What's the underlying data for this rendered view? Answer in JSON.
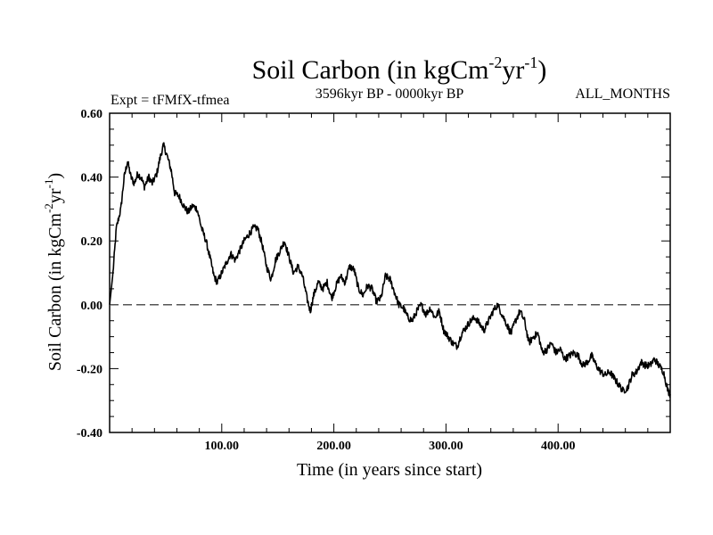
{
  "chart_data": {
    "type": "line",
    "title": "Soil Carbon (in kgCm",
    "title_sup1": "-2",
    "title_mid": "yr",
    "title_sup2": "-1",
    "title_end": ")",
    "subtitle_left": "Expt = tFMfX-tfmea",
    "subtitle_center": "3596kyr BP - 0000kyr BP",
    "subtitle_right": "ALL_MONTHS",
    "xlabel": "Time (in years since start)",
    "ylabel_parts": [
      "Soil Carbon (in kgCm",
      "-2",
      "yr",
      "-1",
      ")"
    ],
    "xlim": [
      0,
      500
    ],
    "ylim": [
      -0.4,
      0.6
    ],
    "xticks": [
      100,
      200,
      300,
      400
    ],
    "xtick_labels": [
      "100.00",
      "200.00",
      "300.00",
      "400.00"
    ],
    "yticks": [
      -0.4,
      -0.2,
      0.0,
      0.2,
      0.4,
      0.6
    ],
    "ytick_labels": [
      "-0.40",
      "-0.20",
      "0.00",
      "0.20",
      "0.40",
      "0.60"
    ],
    "reference_line": {
      "y": 0.0,
      "style": "dashed"
    },
    "line_color": "#000000",
    "series": [
      {
        "name": "Soil Carbon",
        "x": [
          0,
          3,
          6,
          10,
          13,
          16,
          19,
          22,
          25,
          28,
          31,
          35,
          38,
          42,
          45,
          48,
          51,
          55,
          58,
          62,
          66,
          70,
          74,
          78,
          82,
          86,
          90,
          93,
          96,
          100,
          104,
          108,
          112,
          116,
          120,
          124,
          128,
          132,
          136,
          140,
          144,
          148,
          152,
          156,
          160,
          164,
          168,
          172,
          176,
          179,
          182,
          186,
          190,
          194,
          198,
          202,
          206,
          210,
          214,
          218,
          222,
          226,
          230,
          234,
          238,
          242,
          246,
          250,
          254,
          258,
          262,
          266,
          270,
          274,
          278,
          282,
          286,
          290,
          294,
          298,
          302,
          306,
          310,
          314,
          318,
          322,
          326,
          330,
          334,
          338,
          342,
          346,
          350,
          354,
          358,
          362,
          366,
          370,
          374,
          378,
          382,
          386,
          390,
          394,
          398,
          402,
          406,
          410,
          414,
          418,
          422,
          426,
          430,
          434,
          438,
          442,
          446,
          450,
          454,
          458,
          462,
          466,
          470,
          474,
          478,
          482,
          486,
          490,
          494,
          498,
          500
        ],
        "y": [
          0.0,
          0.1,
          0.24,
          0.3,
          0.4,
          0.45,
          0.4,
          0.38,
          0.41,
          0.4,
          0.37,
          0.4,
          0.38,
          0.41,
          0.46,
          0.5,
          0.47,
          0.42,
          0.35,
          0.34,
          0.31,
          0.29,
          0.31,
          0.3,
          0.24,
          0.2,
          0.14,
          0.09,
          0.07,
          0.1,
          0.13,
          0.16,
          0.14,
          0.17,
          0.2,
          0.22,
          0.24,
          0.24,
          0.19,
          0.12,
          0.08,
          0.14,
          0.17,
          0.2,
          0.15,
          0.1,
          0.12,
          0.09,
          0.02,
          -0.02,
          0.03,
          0.07,
          0.05,
          0.07,
          0.02,
          0.06,
          0.09,
          0.07,
          0.12,
          0.11,
          0.05,
          0.03,
          0.06,
          0.05,
          0.01,
          0.02,
          0.09,
          0.08,
          0.04,
          0.0,
          -0.01,
          -0.04,
          -0.05,
          -0.02,
          0.0,
          -0.03,
          -0.01,
          -0.04,
          -0.02,
          -0.08,
          -0.1,
          -0.12,
          -0.13,
          -0.09,
          -0.07,
          -0.05,
          -0.04,
          -0.06,
          -0.08,
          -0.05,
          -0.02,
          0.0,
          -0.03,
          -0.06,
          -0.09,
          -0.05,
          -0.02,
          -0.05,
          -0.12,
          -0.1,
          -0.09,
          -0.15,
          -0.14,
          -0.12,
          -0.15,
          -0.14,
          -0.17,
          -0.16,
          -0.15,
          -0.16,
          -0.19,
          -0.18,
          -0.16,
          -0.19,
          -0.21,
          -0.22,
          -0.21,
          -0.23,
          -0.25,
          -0.27,
          -0.26,
          -0.22,
          -0.21,
          -0.18,
          -0.19,
          -0.19,
          -0.17,
          -0.19,
          -0.21,
          -0.27,
          -0.28
        ]
      }
    ]
  }
}
